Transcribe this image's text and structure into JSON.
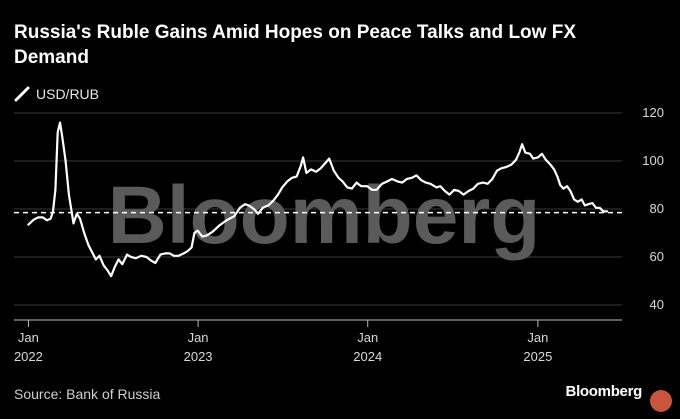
{
  "chart_data": {
    "type": "line",
    "title": "Russia's Ruble Gains Amid Hopes on Peace Talks and Low FX Demand",
    "series": [
      {
        "name": "USD/RUB",
        "color": "#ffffff",
        "points": [
          [
            "2022-01-01",
            73.5
          ],
          [
            "2022-01-12",
            75.5
          ],
          [
            "2022-01-22",
            76.5
          ],
          [
            "2022-02-01",
            76.5
          ],
          [
            "2022-02-10",
            75.3
          ],
          [
            "2022-02-18",
            76.0
          ],
          [
            "2022-02-23",
            79.0
          ],
          [
            "2022-02-28",
            88.0
          ],
          [
            "2022-03-05",
            112.0
          ],
          [
            "2022-03-10",
            116.0
          ],
          [
            "2022-03-15",
            110.0
          ],
          [
            "2022-03-22",
            100.0
          ],
          [
            "2022-03-29",
            86.0
          ],
          [
            "2022-04-03",
            80.0
          ],
          [
            "2022-04-08",
            74.0
          ],
          [
            "2022-04-15",
            78.0
          ],
          [
            "2022-04-22",
            76.0
          ],
          [
            "2022-05-01",
            70.0
          ],
          [
            "2022-05-10",
            65.0
          ],
          [
            "2022-05-18",
            62.0
          ],
          [
            "2022-05-26",
            59.0
          ],
          [
            "2022-06-03",
            60.5
          ],
          [
            "2022-06-12",
            56.5
          ],
          [
            "2022-06-20",
            54.5
          ],
          [
            "2022-06-28",
            52.0
          ],
          [
            "2022-07-06",
            56.0
          ],
          [
            "2022-07-14",
            59.0
          ],
          [
            "2022-07-22",
            57.0
          ],
          [
            "2022-08-01",
            61.0
          ],
          [
            "2022-08-10",
            60.0
          ],
          [
            "2022-08-20",
            59.5
          ],
          [
            "2022-09-01",
            60.5
          ],
          [
            "2022-09-12",
            60.0
          ],
          [
            "2022-09-22",
            58.5
          ],
          [
            "2022-10-01",
            57.5
          ],
          [
            "2022-10-12",
            61.0
          ],
          [
            "2022-10-22",
            61.5
          ],
          [
            "2022-11-01",
            61.5
          ],
          [
            "2022-11-10",
            60.5
          ],
          [
            "2022-11-20",
            60.5
          ],
          [
            "2022-12-01",
            61.5
          ],
          [
            "2022-12-10",
            62.5
          ],
          [
            "2022-12-18",
            64.0
          ],
          [
            "2022-12-24",
            70.0
          ],
          [
            "2022-12-31",
            71.0
          ],
          [
            "2023-01-10",
            68.5
          ],
          [
            "2023-01-20",
            69.0
          ],
          [
            "2023-02-01",
            70.5
          ],
          [
            "2023-02-15",
            73.0
          ],
          [
            "2023-03-01",
            75.0
          ],
          [
            "2023-03-10",
            76.0
          ],
          [
            "2023-03-20",
            77.0
          ],
          [
            "2023-04-01",
            80.5
          ],
          [
            "2023-04-12",
            82.0
          ],
          [
            "2023-04-20",
            81.5
          ],
          [
            "2023-05-01",
            80.0
          ],
          [
            "2023-05-10",
            78.0
          ],
          [
            "2023-05-20",
            80.5
          ],
          [
            "2023-06-01",
            81.5
          ],
          [
            "2023-06-12",
            83.5
          ],
          [
            "2023-06-22",
            86.0
          ],
          [
            "2023-07-01",
            89.0
          ],
          [
            "2023-07-12",
            91.5
          ],
          [
            "2023-07-22",
            93.0
          ],
          [
            "2023-08-01",
            93.5
          ],
          [
            "2023-08-10",
            98.0
          ],
          [
            "2023-08-15",
            101.5
          ],
          [
            "2023-08-22",
            95.0
          ],
          [
            "2023-09-01",
            96.5
          ],
          [
            "2023-09-12",
            95.5
          ],
          [
            "2023-09-22",
            97.0
          ],
          [
            "2023-10-01",
            99.0
          ],
          [
            "2023-10-10",
            101.0
          ],
          [
            "2023-10-20",
            96.0
          ],
          [
            "2023-10-30",
            93.0
          ],
          [
            "2023-11-08",
            91.5
          ],
          [
            "2023-11-18",
            89.0
          ],
          [
            "2023-11-28",
            88.5
          ],
          [
            "2023-12-08",
            91.0
          ],
          [
            "2023-12-18",
            89.5
          ],
          [
            "2023-12-31",
            89.5
          ],
          [
            "2024-01-10",
            88.0
          ],
          [
            "2024-01-20",
            88.0
          ],
          [
            "2024-02-01",
            90.5
          ],
          [
            "2024-02-12",
            91.5
          ],
          [
            "2024-02-22",
            92.5
          ],
          [
            "2024-03-05",
            91.5
          ],
          [
            "2024-03-15",
            91.0
          ],
          [
            "2024-03-25",
            92.5
          ],
          [
            "2024-04-05",
            93.0
          ],
          [
            "2024-04-15",
            94.0
          ],
          [
            "2024-04-25",
            92.0
          ],
          [
            "2024-05-05",
            91.0
          ],
          [
            "2024-05-15",
            90.5
          ],
          [
            "2024-05-28",
            89.0
          ],
          [
            "2024-06-05",
            89.5
          ],
          [
            "2024-06-15",
            87.5
          ],
          [
            "2024-06-25",
            86.0
          ],
          [
            "2024-07-05",
            88.0
          ],
          [
            "2024-07-15",
            87.5
          ],
          [
            "2024-07-25",
            86.0
          ],
          [
            "2024-08-05",
            87.5
          ],
          [
            "2024-08-15",
            88.5
          ],
          [
            "2024-08-25",
            90.5
          ],
          [
            "2024-09-05",
            91.0
          ],
          [
            "2024-09-15",
            90.5
          ],
          [
            "2024-09-25",
            92.5
          ],
          [
            "2024-10-05",
            96.0
          ],
          [
            "2024-10-15",
            97.0
          ],
          [
            "2024-10-25",
            97.5
          ],
          [
            "2024-11-05",
            98.5
          ],
          [
            "2024-11-15",
            100.5
          ],
          [
            "2024-11-22",
            103.5
          ],
          [
            "2024-11-28",
            107.0
          ],
          [
            "2024-12-05",
            103.5
          ],
          [
            "2024-12-15",
            103.0
          ],
          [
            "2024-12-22",
            101.0
          ],
          [
            "2025-01-01",
            101.5
          ],
          [
            "2025-01-10",
            103.0
          ],
          [
            "2025-01-18",
            100.5
          ],
          [
            "2025-01-28",
            98.5
          ],
          [
            "2025-02-05",
            96.5
          ],
          [
            "2025-02-12",
            93.5
          ],
          [
            "2025-02-18",
            90.0
          ],
          [
            "2025-02-25",
            88.5
          ],
          [
            "2025-03-05",
            89.5
          ],
          [
            "2025-03-12",
            87.5
          ],
          [
            "2025-03-20",
            84.0
          ],
          [
            "2025-03-28",
            83.0
          ],
          [
            "2025-04-05",
            84.0
          ],
          [
            "2025-04-12",
            81.5
          ],
          [
            "2025-04-20",
            82.0
          ],
          [
            "2025-04-28",
            82.5
          ],
          [
            "2025-05-06",
            80.5
          ],
          [
            "2025-05-14",
            80.5
          ],
          [
            "2025-05-22",
            79.0
          ],
          [
            "2025-05-30",
            79.0
          ]
        ]
      }
    ],
    "reference_line": {
      "value": 78.5,
      "style": "dashed",
      "color": "#ffffff"
    },
    "x_ticks": [
      {
        "date": "2022-01-01",
        "month": "Jan",
        "year": "2022"
      },
      {
        "date": "2023-01-01",
        "month": "Jan",
        "year": "2023"
      },
      {
        "date": "2024-01-01",
        "month": "Jan",
        "year": "2024"
      },
      {
        "date": "2025-01-01",
        "month": "Jan",
        "year": "2025"
      }
    ],
    "xlim": [
      "2021-12-01",
      "2025-07-01"
    ],
    "y_ticks": [
      40,
      60,
      80,
      100,
      120
    ],
    "ylim": [
      40,
      120
    ],
    "y_axis_side": "right",
    "grid": "horizontal",
    "xlabel": "",
    "ylabel": ""
  },
  "legend_label": "USD/RUB",
  "source": "Source: Bank of Russia",
  "brand": "Bloomberg",
  "watermark": "Bloomberg",
  "colors": {
    "background": "#000000",
    "line": "#ffffff",
    "grid": "#3a3a3a",
    "axis": "#bdbdbd",
    "watermark": "#5a5a5a",
    "badge": "#c8553d"
  }
}
